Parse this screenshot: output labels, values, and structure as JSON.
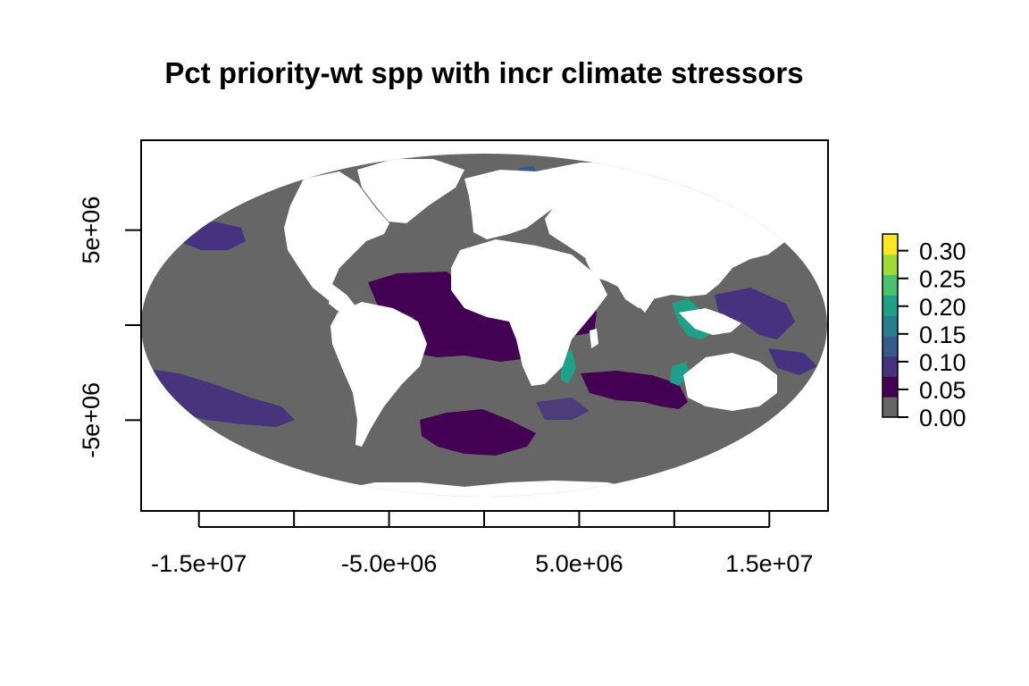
{
  "title": "Pct priority-wt spp with incr climate stressors",
  "map": {
    "projection": "Mollweide",
    "ocean_color": "#666666",
    "land_color": "#ffffff"
  },
  "x_axis": {
    "ticks": [
      -15000000,
      -10000000,
      -5000000,
      0,
      5000000,
      10000000,
      15000000
    ],
    "labels": [
      "-1.5e+07",
      "",
      "-5.0e+06",
      "",
      "5.0e+06",
      "",
      "1.5e+07"
    ],
    "range": [
      -18040096,
      18040096
    ]
  },
  "y_axis": {
    "ticks": [
      5000000,
      0,
      -5000000
    ],
    "labels": [
      "5e+06",
      "",
      "-5e+06"
    ],
    "range": [
      -9020048,
      9020048
    ]
  },
  "legend": {
    "min": 0,
    "max": 0.33,
    "ticks": [
      0.0,
      0.05,
      0.1,
      0.15,
      0.2,
      0.25,
      0.3
    ],
    "labels": [
      "0.00",
      "0.05",
      "0.10",
      "0.15",
      "0.20",
      "0.25",
      "0.30"
    ],
    "colors": [
      "#666666",
      "#440154",
      "#46337e",
      "#365c8d",
      "#277f8e",
      "#1fa187",
      "#4ac16d",
      "#9fda3a",
      "#fde725"
    ]
  }
}
